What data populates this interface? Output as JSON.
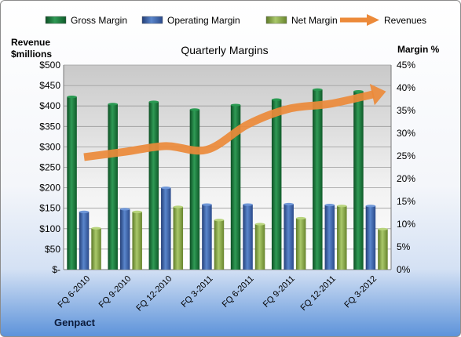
{
  "chart_data": {
    "type": "bar",
    "title": "Quarterly Margins",
    "ylabel_left_line1": "Revenue",
    "ylabel_left_line2": "$millions",
    "ylabel_right": "Margin %",
    "footer": "Genpact",
    "categories": [
      "FQ 6-2010",
      "FQ 9-2010",
      "FQ 12-2010",
      "FQ 3-2011",
      "FQ 6-2011",
      "FQ 9-2011",
      "FQ 12-2011",
      "FQ 3-2012"
    ],
    "series": [
      {
        "name": "Gross Margin",
        "axis": "right",
        "color": "#1f7a3f",
        "values": [
          38.0,
          36.4,
          36.9,
          35.2,
          36.2,
          37.4,
          39.6,
          39.2
        ]
      },
      {
        "name": "Operating Margin",
        "axis": "right",
        "color": "#3f68b0",
        "values": [
          12.7,
          13.3,
          18.0,
          14.3,
          14.3,
          14.4,
          14.2,
          14.0
        ]
      },
      {
        "name": "Net Margin",
        "axis": "right",
        "color": "#8db04a",
        "values": [
          9.1,
          12.7,
          13.8,
          10.9,
          10.0,
          11.3,
          14.0,
          8.9
        ]
      }
    ],
    "line_series": {
      "name": "Revenues",
      "axis": "left",
      "color": "#ec8a3a",
      "values": [
        275,
        288,
        302,
        293,
        355,
        393,
        405,
        427
      ]
    },
    "y_left": {
      "min": 0,
      "max": 500,
      "step": 50,
      "tick_labels": [
        "$-",
        "$50",
        "$100",
        "$150",
        "$200",
        "$250",
        "$300",
        "$350",
        "$400",
        "$450",
        "$500"
      ]
    },
    "y_right": {
      "min": 0,
      "max": 45,
      "step": 5,
      "tick_labels": [
        "0%",
        "5%",
        "10%",
        "15%",
        "20%",
        "25%",
        "30%",
        "35%",
        "40%",
        "45%"
      ]
    },
    "legend": {
      "position": "top",
      "items": [
        "Gross Margin",
        "Operating Margin",
        "Net Margin",
        "Revenues"
      ]
    },
    "grid": true
  }
}
